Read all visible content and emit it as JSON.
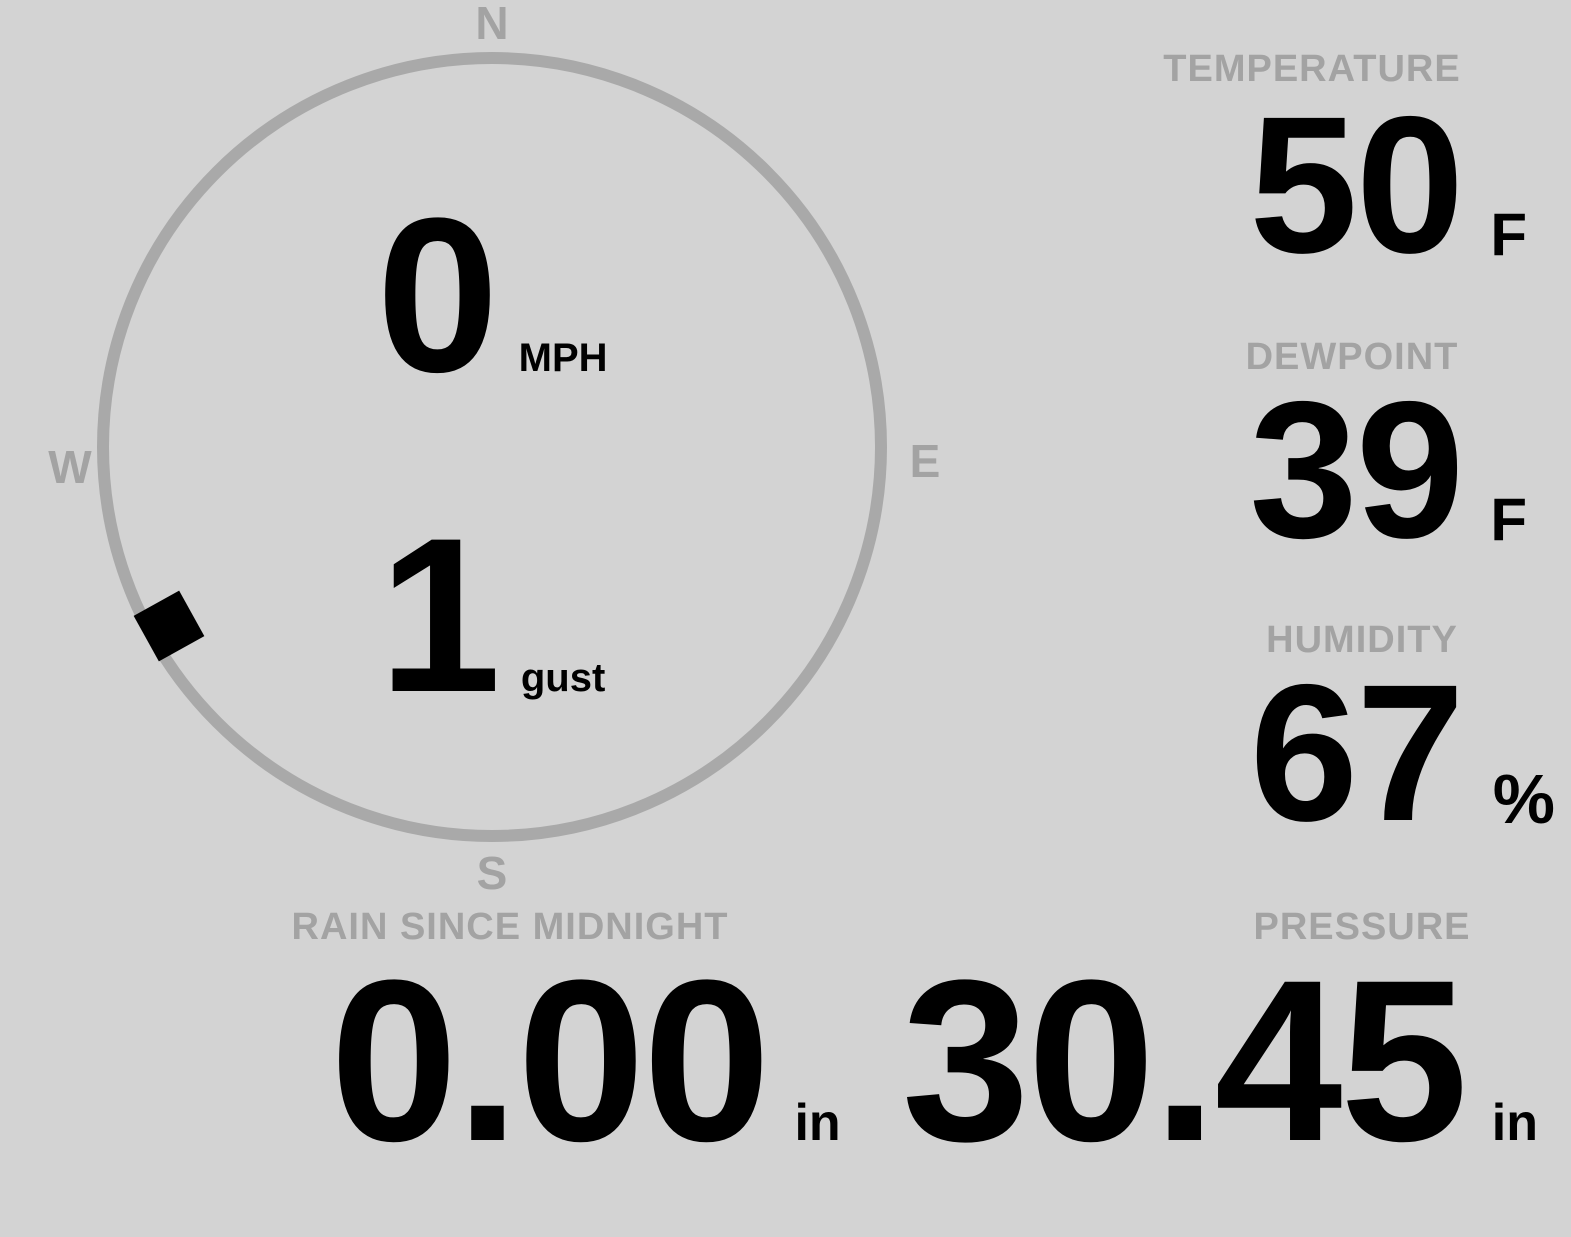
{
  "colors": {
    "background": "#d3d3d3",
    "dial": "#a9a9a9",
    "muted_text": "#a3a3a3",
    "value_text": "#000000"
  },
  "compass": {
    "cardinals": {
      "north": "N",
      "east": "E",
      "south": "S",
      "west": "W"
    },
    "wind_speed": {
      "value": "0",
      "unit": "MPH"
    },
    "wind_gust": {
      "value": "1",
      "unit": "gust"
    },
    "direction_marker": {
      "bearing_deg": 241
    }
  },
  "metrics": {
    "temperature": {
      "label": "TEMPERATURE",
      "value": "50",
      "unit": "F"
    },
    "dewpoint": {
      "label": "DEWPOINT",
      "value": "39",
      "unit": "F"
    },
    "humidity": {
      "label": "HUMIDITY",
      "value": "67",
      "unit": "%"
    },
    "rain_since_midnight": {
      "label": "RAIN SINCE MIDNIGHT",
      "value": "0.00",
      "unit": "in"
    },
    "pressure": {
      "label": "PRESSURE",
      "value": "30.45",
      "unit": "in"
    }
  }
}
